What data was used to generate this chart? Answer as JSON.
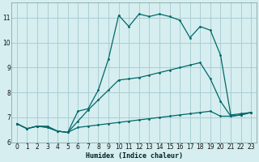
{
  "xlabel": "Humidex (Indice chaleur)",
  "bg_color": "#d6eef0",
  "grid_color": "#aacdd4",
  "line_color": "#006868",
  "xlim": [
    -0.5,
    23.5
  ],
  "ylim": [
    6.0,
    11.6
  ],
  "yticks": [
    6,
    7,
    8,
    9,
    10,
    11
  ],
  "xticks": [
    0,
    1,
    2,
    3,
    4,
    5,
    6,
    7,
    8,
    9,
    10,
    11,
    12,
    13,
    14,
    15,
    16,
    17,
    18,
    19,
    20,
    21,
    22,
    23
  ],
  "series1_x": [
    0,
    1,
    2,
    3,
    4,
    5,
    6,
    7,
    8,
    9,
    10,
    11,
    12,
    13,
    14,
    15,
    16,
    17,
    18,
    19,
    20,
    21,
    22,
    23
  ],
  "series1_y": [
    6.75,
    6.55,
    6.65,
    6.65,
    6.45,
    6.4,
    6.6,
    6.65,
    6.7,
    6.75,
    6.8,
    6.85,
    6.9,
    6.95,
    7.0,
    7.05,
    7.1,
    7.15,
    7.2,
    7.25,
    7.05,
    7.05,
    7.1,
    7.2
  ],
  "series2_x": [
    0,
    1,
    2,
    3,
    4,
    5,
    6,
    7,
    8,
    9,
    10,
    11,
    12,
    13,
    14,
    15,
    16,
    17,
    18,
    19,
    20,
    21,
    22,
    23
  ],
  "series2_y": [
    6.75,
    6.55,
    6.65,
    6.6,
    6.45,
    6.4,
    6.85,
    7.3,
    7.7,
    8.1,
    8.5,
    8.55,
    8.6,
    8.7,
    8.8,
    8.9,
    9.0,
    9.1,
    9.2,
    8.55,
    7.65,
    7.05,
    7.1,
    7.2
  ],
  "series3_x": [
    0,
    1,
    2,
    3,
    4,
    5,
    6,
    7,
    8,
    9,
    10,
    11,
    12,
    13,
    14,
    15,
    16,
    17,
    18,
    19,
    20,
    21,
    22,
    23
  ],
  "series3_y": [
    6.75,
    6.55,
    6.65,
    6.6,
    6.45,
    6.4,
    7.25,
    7.35,
    8.1,
    9.35,
    11.1,
    10.65,
    11.15,
    11.05,
    11.15,
    11.05,
    10.9,
    10.2,
    10.65,
    10.5,
    9.5,
    7.1,
    7.15,
    7.2
  ]
}
